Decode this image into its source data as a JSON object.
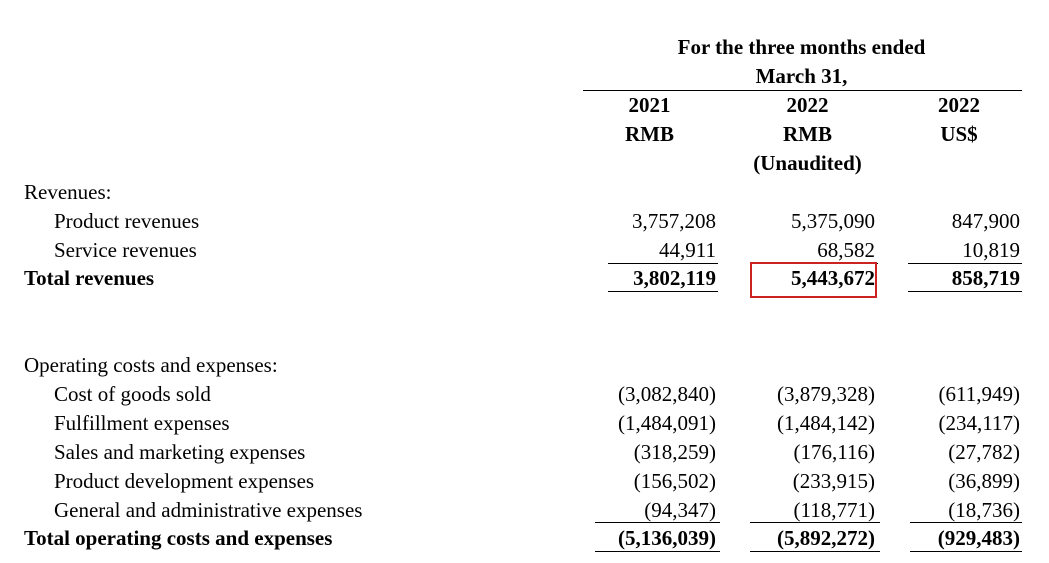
{
  "header": {
    "period_line1": "For the three months ended",
    "period_line2": "March 31,",
    "columns": [
      {
        "year": "2021",
        "currency": "RMB",
        "note": ""
      },
      {
        "year": "2022",
        "currency": "RMB",
        "note": "(Unaudited)"
      },
      {
        "year": "2022",
        "currency": "US$",
        "note": ""
      }
    ]
  },
  "revenues": {
    "heading": "Revenues:",
    "rows": [
      {
        "label": "Product revenues",
        "values": [
          "3,757,208",
          "5,375,090",
          "847,900"
        ]
      },
      {
        "label": "Service revenues",
        "values": [
          "44,911",
          "68,582",
          "10,819"
        ]
      }
    ],
    "total": {
      "label": "Total revenues",
      "values": [
        "3,802,119",
        "5,443,672",
        "858,719"
      ]
    }
  },
  "costs": {
    "heading": "Operating costs and expenses:",
    "rows": [
      {
        "label": "Cost of goods sold",
        "values": [
          "(3,082,840)",
          "(3,879,328)",
          "(611,949)"
        ]
      },
      {
        "label": "Fulfillment expenses",
        "values": [
          "(1,484,091)",
          "(1,484,142)",
          "(234,117)"
        ]
      },
      {
        "label": "Sales and marketing expenses",
        "values": [
          "(318,259)",
          "(176,116)",
          "(27,782)"
        ]
      },
      {
        "label": "Product development expenses",
        "values": [
          "(156,502)",
          "(233,915)",
          "(36,899)"
        ]
      },
      {
        "label": "General and administrative expenses",
        "values": [
          "(94,347)",
          "(118,771)",
          "(18,736)"
        ]
      }
    ],
    "total": {
      "label": "Total operating costs and expenses",
      "values": [
        "(5,136,039)",
        "(5,892,272)",
        "(929,483)"
      ]
    }
  },
  "highlight_color": "#cc2222"
}
